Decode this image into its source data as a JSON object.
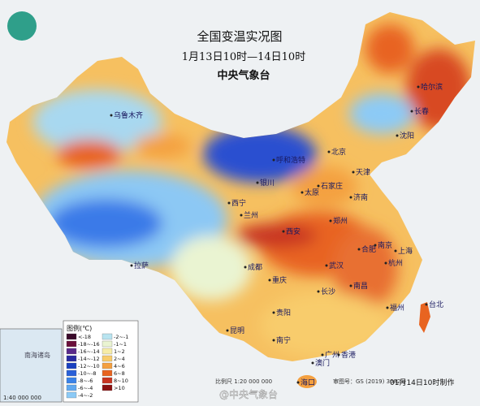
{
  "header": {
    "title": "全国变温实况图",
    "period": "1月13日10时—14日10时",
    "agency": "中央气象台"
  },
  "legend": {
    "title": "图例(℃)",
    "items": [
      {
        "label": "<-18",
        "color": "#3a0a2a"
      },
      {
        "label": "-18~-16",
        "color": "#6a0f3a"
      },
      {
        "label": "-16~-14",
        "color": "#5a2a8a"
      },
      {
        "label": "-14~-12",
        "color": "#2a2aa0"
      },
      {
        "label": "-12~-10",
        "color": "#1a40c0"
      },
      {
        "label": "-10~-8",
        "color": "#2a60d8"
      },
      {
        "label": "-8~-6",
        "color": "#3a82e8"
      },
      {
        "label": "-6~-4",
        "color": "#60a8f0"
      },
      {
        "label": "-4~-2",
        "color": "#8ccaf6"
      },
      {
        "label": "-2~-1",
        "color": "#b8e4f0"
      },
      {
        "label": "-1~1",
        "color": "#eaf4d2"
      },
      {
        "label": "1~2",
        "color": "#f6eca8"
      },
      {
        "label": "2~4",
        "color": "#f8cc6c"
      },
      {
        "label": "4~6",
        "color": "#f4a040"
      },
      {
        "label": "6~8",
        "color": "#e86420"
      },
      {
        "label": "8~10",
        "color": "#c83420"
      },
      {
        "label": ">10",
        "color": "#8a1010"
      }
    ]
  },
  "cities": [
    "乌鲁木齐",
    "拉萨",
    "西宁",
    "兰州",
    "银川",
    "呼和浩特",
    "北京",
    "天津",
    "石家庄",
    "太原",
    "济南",
    "郑州",
    "西安",
    "成都",
    "重庆",
    "贵阳",
    "昆明",
    "南宁",
    "广州",
    "香港",
    "澳门",
    "海口",
    "长沙",
    "武汉",
    "南昌",
    "合肥",
    "南京",
    "上海",
    "杭州",
    "福州",
    "台北",
    "沈阳",
    "长春",
    "哈尔滨"
  ],
  "inset": {
    "label": "南海诸岛",
    "scale": "1:40 000 000"
  },
  "footer": {
    "scale": "比例尺 1:20 000 000",
    "approval": "审图号：GS (2019) 3082号",
    "made": "01月14日10时制作",
    "watermark": "@中央气象台"
  }
}
